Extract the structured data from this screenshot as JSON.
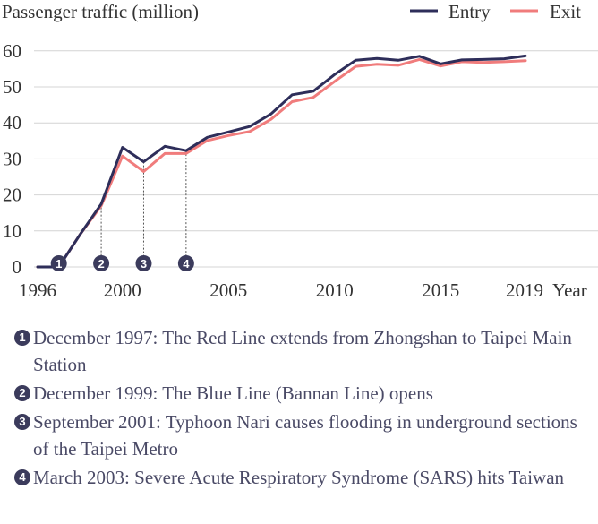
{
  "chart_data": {
    "type": "line",
    "ylabel": "Passenger traffic (million)",
    "xlabel": "Year",
    "x": [
      1996,
      1997,
      1998,
      1999,
      2000,
      2001,
      2002,
      2003,
      2004,
      2005,
      2006,
      2007,
      2008,
      2009,
      2010,
      2011,
      2012,
      2013,
      2014,
      2015,
      2016,
      2017,
      2018,
      2019
    ],
    "series": [
      {
        "name": "Entry",
        "color": "#2e2e5a",
        "values": [
          0,
          0,
          9,
          17.5,
          33.2,
          29.2,
          33.5,
          32.3,
          36,
          37.5,
          39,
          42.5,
          47.8,
          48.8,
          53.4,
          57.4,
          57.9,
          57.4,
          58.5,
          56.4,
          57.5,
          57.6,
          57.8,
          58.6
        ]
      },
      {
        "name": "Exit",
        "color": "#f07c7c",
        "values": [
          0,
          0,
          9,
          17,
          30.8,
          26.5,
          31.5,
          31.5,
          35.1,
          36.5,
          37.6,
          41,
          45.9,
          47.1,
          51.5,
          55.7,
          56.3,
          56,
          57.6,
          55.8,
          57,
          56.8,
          57,
          57.3
        ]
      }
    ],
    "xlim": [
      1996,
      2019
    ],
    "ylim": [
      0,
      62
    ],
    "yticks": [
      0,
      10,
      20,
      30,
      40,
      50,
      60
    ],
    "xticks": [
      1996,
      2000,
      2005,
      2010,
      2015
    ],
    "xtick_last": "2019",
    "grid": "horizontal",
    "legend": "top-right",
    "markers": [
      {
        "num": "1",
        "year": 1997
      },
      {
        "num": "2",
        "year": 1999
      },
      {
        "num": "3",
        "year": 2001
      },
      {
        "num": "4",
        "year": 2003
      }
    ]
  },
  "annotations": [
    {
      "num": "1",
      "text": "December 1997: The Red Line extends from Zhongshan to Taipei Main Station"
    },
    {
      "num": "2",
      "text": "December 1999: The Blue Line (Bannan Line) opens"
    },
    {
      "num": "3",
      "text": "September 2001: Typhoon Nari causes flooding in underground sections of the Taipei Metro"
    },
    {
      "num": "4",
      "text": "March 2003: Severe Acute Respiratory Syndrome (SARS) hits Taiwan"
    }
  ]
}
